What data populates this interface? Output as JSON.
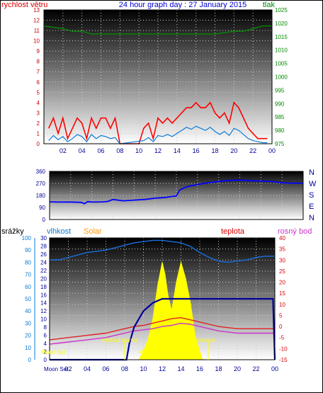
{
  "chart_data": [
    {
      "id": "wind",
      "type": "line",
      "title": "24 hour graph day : 27 January 2015",
      "left_axis_label": "rychlost větru",
      "right_axis_label": "tlak",
      "x_ticks": [
        "02",
        "04",
        "06",
        "08",
        "10",
        "12",
        "14",
        "16",
        "18",
        "20",
        "22",
        "00"
      ],
      "y_left_ticks": [
        "0",
        "1",
        "2",
        "3",
        "4",
        "5",
        "6",
        "7",
        "8",
        "9",
        "10",
        "11",
        "12",
        "13"
      ],
      "y_left_range": [
        0,
        13
      ],
      "y_right_ticks": [
        "975",
        "980",
        "985",
        "990",
        "995",
        "1000",
        "1005",
        "1010",
        "1015",
        "1020",
        "1025"
      ],
      "y_right_range": [
        975,
        1025
      ],
      "series": [
        {
          "name": "gust",
          "color": "#ff0000",
          "x": [
            0.5,
            1,
            1.5,
            2,
            2.5,
            3,
            3.5,
            4,
            4.5,
            5,
            5.5,
            6,
            6.5,
            7,
            7.5,
            8,
            8.5,
            9,
            9.5,
            10,
            10.5,
            11,
            11.5,
            12,
            12.5,
            13,
            13.5,
            14,
            14.5,
            15,
            15.5,
            16,
            16.5,
            17,
            17.5,
            18,
            18.5,
            19,
            19.5,
            20,
            20.5,
            21,
            21.5,
            22,
            22.5,
            23,
            23.5
          ],
          "values": [
            1.5,
            2.5,
            1,
            2.5,
            0.5,
            1.5,
            2.5,
            2,
            0.5,
            2.5,
            1.5,
            2.5,
            2.5,
            1.5,
            2.5,
            0,
            0,
            0,
            0,
            0,
            1.5,
            2,
            0.5,
            2.5,
            2,
            2.5,
            2,
            2.5,
            3,
            3.5,
            3.5,
            4,
            3.5,
            3.5,
            4,
            3,
            2.5,
            3,
            2,
            4,
            3.5,
            2.5,
            1.5,
            1,
            0.5,
            0.5,
            0.5
          ]
        },
        {
          "name": "average",
          "color": "#0b7bd6",
          "x": [
            0.5,
            1,
            1.5,
            2,
            2.5,
            3,
            3.5,
            4,
            4.5,
            5,
            5.5,
            6,
            6.5,
            7,
            7.5,
            8,
            10.5,
            11,
            11.5,
            12,
            12.5,
            13,
            13.5,
            14,
            14.5,
            15,
            15.5,
            16,
            16.5,
            17,
            17.5,
            18,
            18.5,
            19,
            19.5,
            20,
            20.5,
            21,
            21.5,
            22,
            22.5,
            23,
            23.5
          ],
          "values": [
            0.3,
            0.8,
            0.4,
            0.7,
            0.2,
            0.5,
            0.9,
            0.7,
            0.2,
            0.9,
            0.5,
            0.8,
            0.7,
            0.5,
            0.6,
            0,
            0.3,
            0.6,
            0.2,
            0.8,
            0.7,
            0.9,
            0.7,
            1.0,
            1.3,
            1.6,
            1.4,
            1.7,
            1.5,
            1.3,
            1.6,
            1.2,
            0.9,
            1.2,
            0.8,
            1.5,
            1.3,
            0.9,
            0.5,
            0.3,
            0.2,
            0.1,
            0.1
          ]
        },
        {
          "name": "pressure",
          "color": "#009900",
          "x": [
            0,
            2,
            3,
            4,
            5,
            6,
            8,
            10,
            12,
            14,
            16,
            18,
            20,
            21,
            22,
            23,
            24
          ],
          "values": [
            1019,
            1018,
            1017,
            1017,
            1016,
            1016,
            1016,
            1016,
            1016,
            1016,
            1016,
            1016,
            1017,
            1017,
            1018,
            1019,
            1019
          ]
        }
      ]
    },
    {
      "id": "direction",
      "type": "scatter",
      "x_ticks": [
        "02",
        "04",
        "06",
        "08",
        "10",
        "12",
        "14",
        "16",
        "18",
        "20",
        "22",
        "00"
      ],
      "y_ticks": [
        "0",
        "90",
        "180",
        "270",
        "360"
      ],
      "y_range": [
        0,
        360
      ],
      "right_labels": [
        "N",
        "W",
        "S",
        "E",
        "N"
      ],
      "series": [
        {
          "name": "direction",
          "color": "#0000ff",
          "x": [
            0,
            1,
            2,
            3,
            3.3,
            3.6,
            4,
            5,
            5.5,
            6,
            7,
            8,
            9,
            10,
            11,
            11.5,
            12,
            12.3,
            13,
            14,
            15,
            16,
            17,
            18,
            19,
            20,
            21,
            22,
            23,
            24
          ],
          "values": [
            132,
            130,
            131,
            128,
            118,
            134,
            130,
            132,
            135,
            150,
            140,
            145,
            150,
            160,
            165,
            172,
            176,
            220,
            245,
            262,
            275,
            285,
            292,
            295,
            290,
            288,
            285,
            275,
            272,
            272
          ]
        }
      ]
    },
    {
      "id": "temperature",
      "type": "line",
      "header_labels": [
        "srážky",
        "vlhkost",
        "Solar",
        "teplota",
        "rosný bod"
      ],
      "x_ticks": [
        "02",
        "04",
        "06",
        "08",
        "10",
        "12",
        "14",
        "16",
        "18",
        "20",
        "22",
        "00"
      ],
      "y_rain_ticks": [
        "0",
        "10",
        "20",
        "30",
        "40",
        "50",
        "60",
        "70",
        "80",
        "90",
        "100"
      ],
      "y_rain_range": [
        0,
        100
      ],
      "y_humidity_ticks": [
        "0",
        "2",
        "4",
        "6",
        "8",
        "10",
        "12",
        "14",
        "16",
        "18",
        "20",
        "22",
        "24",
        "26",
        "28",
        "30"
      ],
      "y_humidity_range": [
        0,
        30
      ],
      "y_temp_ticks": [
        "-15",
        "-10",
        "-5",
        "0",
        "5",
        "10",
        "15",
        "20",
        "25",
        "30",
        "35",
        "40"
      ],
      "y_temp_range": [
        -15,
        40
      ],
      "annotations": [
        "východ slunce",
        "západ slunce",
        "Moon Set",
        "Moon Set",
        "Moon Rise"
      ],
      "series": [
        {
          "name": "vlhkost",
          "color": "#1a6fe0",
          "x": [
            0,
            1,
            2,
            3,
            4,
            5,
            6,
            7,
            8,
            9,
            10,
            11,
            12,
            13,
            14,
            15,
            16,
            17,
            18,
            19,
            20,
            21,
            22,
            23,
            24
          ],
          "values": [
            82,
            82,
            84,
            86,
            88,
            89,
            90,
            92,
            94,
            96,
            97,
            98,
            98,
            97,
            96,
            93,
            88,
            84,
            81,
            80,
            81,
            82,
            84,
            85,
            85
          ]
        },
        {
          "name": "teplota",
          "color": "#dd2222",
          "x": [
            0,
            1,
            2,
            3,
            4,
            5,
            6,
            7,
            8,
            9,
            10,
            11,
            12,
            13,
            14,
            15,
            16,
            17,
            18,
            19,
            20,
            21,
            22,
            23,
            24
          ],
          "values": [
            -6,
            -5.5,
            -5,
            -4.5,
            -4,
            -3.5,
            -3,
            -2,
            -1,
            0,
            0.5,
            1.5,
            2.5,
            3.5,
            4,
            3,
            2,
            1,
            0,
            -0.5,
            -1,
            -1,
            -1,
            -1,
            -1
          ]
        },
        {
          "name": "rosný bod",
          "color": "#cc33cc",
          "x": [
            0,
            1,
            2,
            3,
            4,
            5,
            6,
            7,
            8,
            9,
            10,
            11,
            12,
            13,
            14,
            15,
            16,
            17,
            18,
            19,
            20,
            21,
            22,
            23,
            24
          ],
          "values": [
            -8,
            -7.5,
            -7,
            -6.5,
            -6,
            -5.5,
            -5,
            -4,
            -3,
            -2,
            -1.5,
            -1,
            0,
            0.5,
            1.5,
            1,
            0,
            -1,
            -2,
            -2.5,
            -3,
            -3,
            -3,
            -3,
            -3
          ]
        },
        {
          "name": "Solar",
          "color": "#ffff00",
          "x": [
            9.5,
            10,
            10.5,
            11,
            11.5,
            12,
            12.3,
            12.6,
            13,
            13.5,
            14,
            14.5,
            15,
            15.5,
            16,
            16.3
          ],
          "values": [
            0,
            2,
            5,
            10,
            18,
            24,
            21,
            16,
            12,
            19,
            24,
            20,
            14,
            6,
            2,
            0
          ]
        },
        {
          "name": "srážky",
          "color": "#000099",
          "x": [
            0,
            8.2,
            8.5,
            9,
            10,
            10.5,
            11,
            12,
            13,
            14,
            18,
            23,
            23.8,
            24
          ],
          "values": [
            0,
            0,
            4,
            8,
            12,
            13,
            14,
            15,
            15,
            15,
            15,
            15,
            15,
            0
          ]
        }
      ]
    }
  ]
}
